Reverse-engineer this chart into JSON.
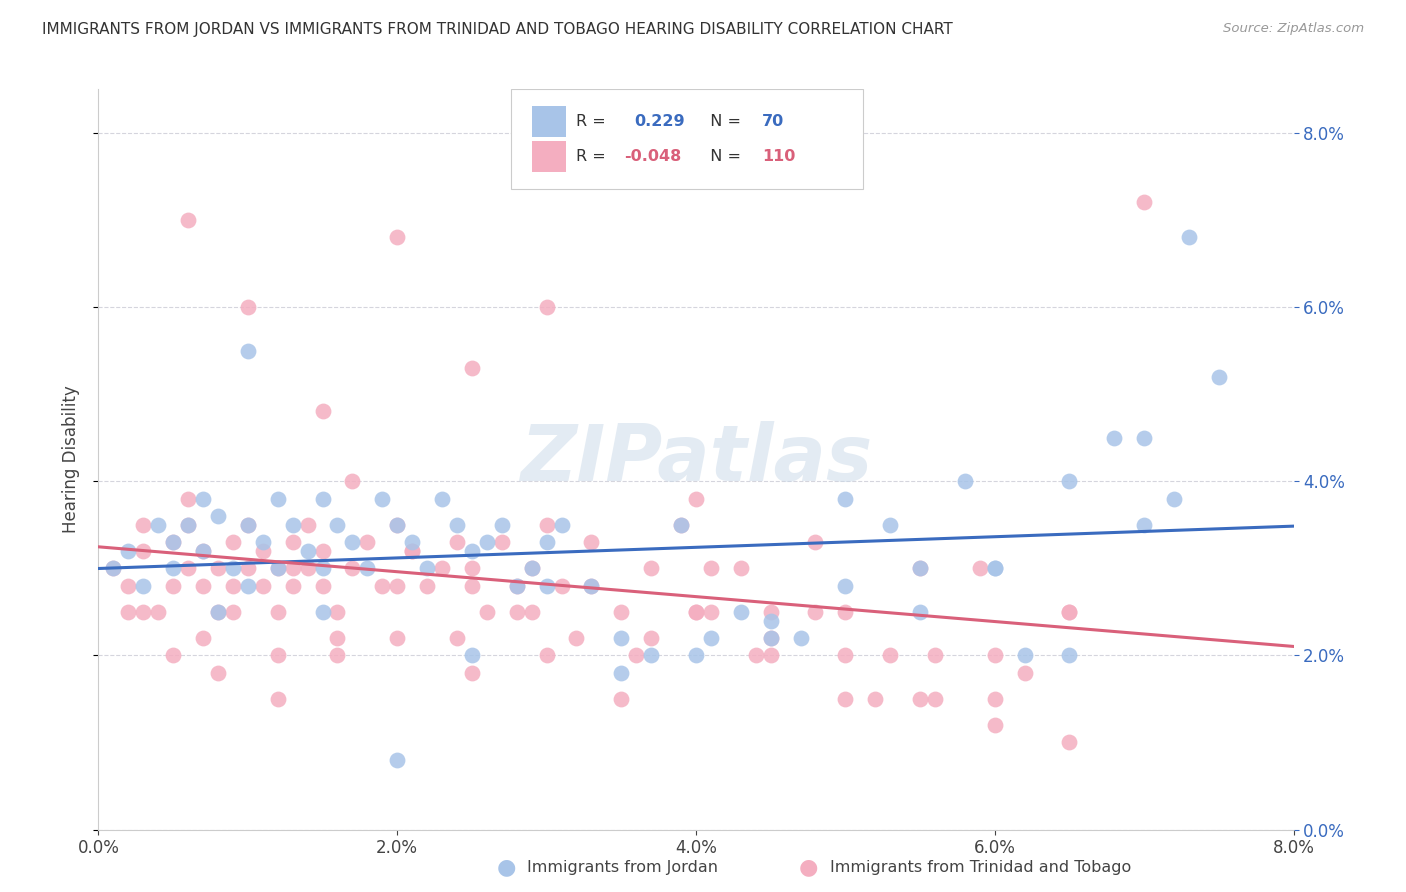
{
  "title": "IMMIGRANTS FROM JORDAN VS IMMIGRANTS FROM TRINIDAD AND TOBAGO HEARING DISABILITY CORRELATION CHART",
  "source": "Source: ZipAtlas.com",
  "ylabel": "Hearing Disability",
  "legend1_r": "R =  0.229",
  "legend1_n": "N =  70",
  "legend2_r": "R = -0.048",
  "legend2_n": "N = 110",
  "jordan_color": "#a8c4e8",
  "trinidad_color": "#f4aec0",
  "line1_color": "#3a6bbf",
  "line2_color": "#d9607a",
  "watermark": "ZIPatlas",
  "jordan_scatter_x": [
    0.001,
    0.002,
    0.003,
    0.004,
    0.005,
    0.005,
    0.006,
    0.007,
    0.007,
    0.008,
    0.008,
    0.009,
    0.01,
    0.01,
    0.011,
    0.012,
    0.012,
    0.013,
    0.014,
    0.015,
    0.015,
    0.016,
    0.017,
    0.018,
    0.019,
    0.02,
    0.021,
    0.022,
    0.023,
    0.024,
    0.025,
    0.026,
    0.027,
    0.028,
    0.029,
    0.03,
    0.031,
    0.033,
    0.035,
    0.037,
    0.039,
    0.041,
    0.043,
    0.045,
    0.047,
    0.05,
    0.053,
    0.055,
    0.058,
    0.06,
    0.062,
    0.065,
    0.068,
    0.07,
    0.072,
    0.075,
    0.01,
    0.015,
    0.02,
    0.025,
    0.03,
    0.035,
    0.04,
    0.045,
    0.05,
    0.055,
    0.06,
    0.065,
    0.07,
    0.073
  ],
  "jordan_scatter_y": [
    0.03,
    0.032,
    0.028,
    0.035,
    0.03,
    0.033,
    0.035,
    0.032,
    0.038,
    0.025,
    0.036,
    0.03,
    0.035,
    0.028,
    0.033,
    0.03,
    0.038,
    0.035,
    0.032,
    0.03,
    0.038,
    0.035,
    0.033,
    0.03,
    0.038,
    0.035,
    0.033,
    0.03,
    0.038,
    0.035,
    0.032,
    0.033,
    0.035,
    0.028,
    0.03,
    0.033,
    0.035,
    0.028,
    0.022,
    0.02,
    0.035,
    0.022,
    0.025,
    0.024,
    0.022,
    0.028,
    0.035,
    0.03,
    0.04,
    0.03,
    0.02,
    0.04,
    0.045,
    0.035,
    0.038,
    0.052,
    0.055,
    0.025,
    0.008,
    0.02,
    0.028,
    0.018,
    0.02,
    0.022,
    0.038,
    0.025,
    0.03,
    0.02,
    0.045,
    0.068
  ],
  "trinidad_scatter_x": [
    0.001,
    0.002,
    0.003,
    0.004,
    0.005,
    0.005,
    0.006,
    0.006,
    0.007,
    0.007,
    0.008,
    0.008,
    0.009,
    0.009,
    0.01,
    0.01,
    0.011,
    0.011,
    0.012,
    0.012,
    0.013,
    0.013,
    0.014,
    0.014,
    0.015,
    0.015,
    0.016,
    0.017,
    0.018,
    0.019,
    0.02,
    0.021,
    0.022,
    0.023,
    0.024,
    0.025,
    0.026,
    0.027,
    0.028,
    0.029,
    0.03,
    0.031,
    0.033,
    0.035,
    0.037,
    0.039,
    0.041,
    0.043,
    0.045,
    0.048,
    0.05,
    0.053,
    0.056,
    0.059,
    0.062,
    0.065,
    0.003,
    0.006,
    0.009,
    0.013,
    0.017,
    0.021,
    0.025,
    0.029,
    0.033,
    0.037,
    0.041,
    0.045,
    0.05,
    0.055,
    0.06,
    0.065,
    0.003,
    0.007,
    0.012,
    0.016,
    0.02,
    0.024,
    0.028,
    0.032,
    0.036,
    0.04,
    0.044,
    0.048,
    0.052,
    0.056,
    0.06,
    0.002,
    0.005,
    0.008,
    0.012,
    0.016,
    0.02,
    0.025,
    0.03,
    0.035,
    0.04,
    0.045,
    0.05,
    0.055,
    0.06,
    0.065,
    0.07,
    0.006,
    0.01,
    0.015,
    0.02,
    0.025,
    0.03,
    0.04
  ],
  "trinidad_scatter_y": [
    0.03,
    0.028,
    0.032,
    0.025,
    0.033,
    0.028,
    0.03,
    0.035,
    0.028,
    0.032,
    0.025,
    0.03,
    0.033,
    0.028,
    0.03,
    0.035,
    0.028,
    0.032,
    0.025,
    0.03,
    0.033,
    0.028,
    0.03,
    0.035,
    0.028,
    0.032,
    0.025,
    0.03,
    0.033,
    0.028,
    0.035,
    0.032,
    0.028,
    0.03,
    0.033,
    0.028,
    0.025,
    0.033,
    0.028,
    0.025,
    0.035,
    0.028,
    0.033,
    0.025,
    0.03,
    0.035,
    0.025,
    0.03,
    0.022,
    0.033,
    0.025,
    0.02,
    0.02,
    0.03,
    0.018,
    0.025,
    0.035,
    0.038,
    0.025,
    0.03,
    0.04,
    0.032,
    0.03,
    0.03,
    0.028,
    0.022,
    0.03,
    0.025,
    0.02,
    0.03,
    0.015,
    0.025,
    0.025,
    0.022,
    0.02,
    0.022,
    0.028,
    0.022,
    0.025,
    0.022,
    0.02,
    0.025,
    0.02,
    0.025,
    0.015,
    0.015,
    0.02,
    0.025,
    0.02,
    0.018,
    0.015,
    0.02,
    0.022,
    0.018,
    0.02,
    0.015,
    0.025,
    0.02,
    0.015,
    0.015,
    0.012,
    0.01,
    0.072,
    0.07,
    0.06,
    0.048,
    0.068,
    0.053,
    0.06,
    0.038
  ],
  "xlim": [
    0.0,
    0.08
  ],
  "ylim": [
    0.0,
    0.085
  ],
  "background_color": "#ffffff",
  "grid_color": "#d5d5dd"
}
